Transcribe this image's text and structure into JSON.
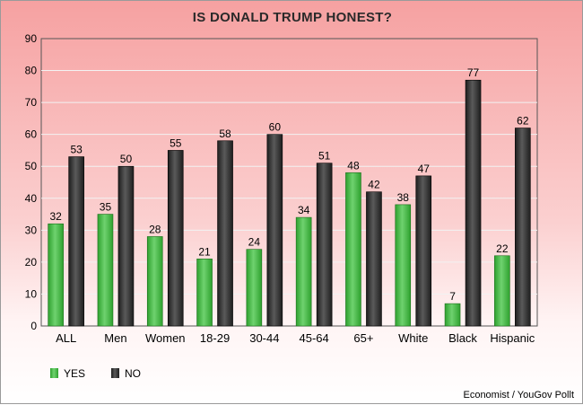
{
  "chart_data": {
    "type": "bar",
    "title": "IS DONALD TRUMP HONEST?",
    "categories": [
      "ALL",
      "Men",
      "Women",
      "18-29",
      "30-44",
      "45-64",
      "65+",
      "White",
      "Black",
      "Hispanic"
    ],
    "series": [
      {
        "name": "YES",
        "color": "#2ea12e",
        "values": [
          32,
          35,
          28,
          21,
          24,
          34,
          48,
          38,
          7,
          22
        ]
      },
      {
        "name": "NO",
        "color": "#1e1e1e",
        "values": [
          53,
          50,
          55,
          58,
          60,
          51,
          42,
          47,
          77,
          62
        ]
      }
    ],
    "ylim": [
      0,
      90
    ],
    "yticks": [
      0,
      10,
      20,
      30,
      40,
      50,
      60,
      70,
      80,
      90
    ],
    "grid": true,
    "legend_position": "bottom-left",
    "source": "Economist / YouGov Pollt"
  }
}
